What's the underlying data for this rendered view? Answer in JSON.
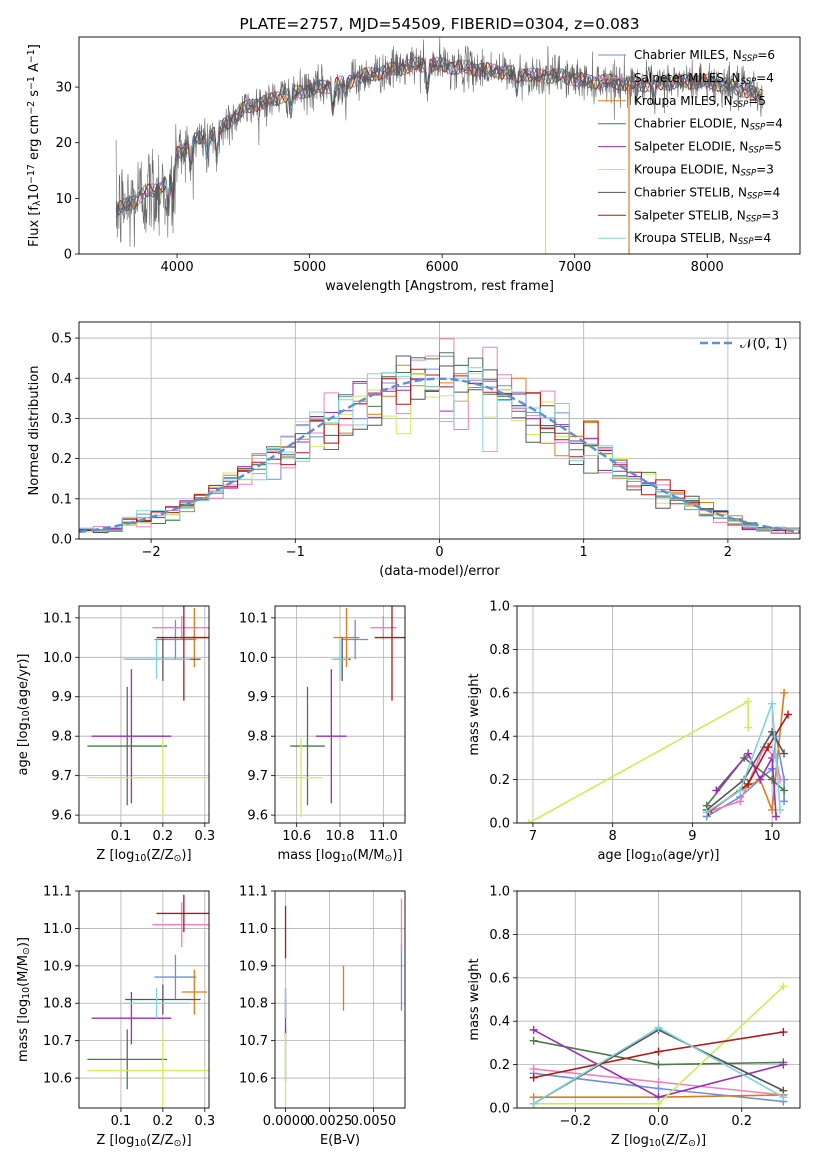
{
  "colors": {
    "Chabrier MILES": "#6e8fd6",
    "Salpeter MILES": "#f07fbf",
    "Kroupa MILES": "#e07a1f",
    "Chabrier ELODIE": "#4a7a4a",
    "Salpeter ELODIE": "#9a2fb8",
    "Kroupa ELODIE": "#d2ea5a",
    "Chabrier STELIB": "#555555",
    "Salpeter STELIB": "#b01818",
    "Kroupa STELIB": "#7fd4dc"
  },
  "chart_data": [
    {
      "id": "spectrum",
      "type": "line",
      "title": "PLATE=2757, MJD=54509, FIBERID=0304, z=0.083",
      "xlabel": "wavelength [Angstrom, rest frame]",
      "ylabel": "Flux [f$_\\lambda$10$^{-17}$ erg cm$^{-2}$ s$^{-1}$ A$^{-1}$]",
      "xlim": [
        3260,
        8700
      ],
      "ylim": [
        0,
        39
      ],
      "xticks": [
        "4000",
        "5000",
        "6000",
        "7000",
        "8000"
      ],
      "yticks": [
        "0",
        "10",
        "20",
        "30"
      ],
      "legend_position": "upper-right",
      "legend": [
        {
          "series": "Chabrier MILES",
          "label": "Chabrier MILES, N",
          "sub": "SSP",
          "tail": "=6"
        },
        {
          "series": "Salpeter MILES",
          "label": "Salpeter MILES, N",
          "sub": "SSP",
          "tail": "=4"
        },
        {
          "series": "Kroupa MILES",
          "label": "Kroupa MILES, N",
          "sub": "SSP",
          "tail": "=5"
        },
        {
          "series": "Chabrier ELODIE",
          "label": "Chabrier ELODIE, N",
          "sub": "SSP",
          "tail": "=4"
        },
        {
          "series": "Salpeter ELODIE",
          "label": "Salpeter ELODIE, N",
          "sub": "SSP",
          "tail": "=5"
        },
        {
          "series": "Kroupa ELODIE",
          "label": "Kroupa ELODIE, N",
          "sub": "SSP",
          "tail": "=3"
        },
        {
          "series": "Chabrier STELIB",
          "label": "Chabrier STELIB, N",
          "sub": "SSP",
          "tail": "=4"
        },
        {
          "series": "Salpeter STELIB",
          "label": "Salpeter STELIB, N",
          "sub": "SSP",
          "tail": "=3"
        },
        {
          "series": "Kroupa STELIB",
          "label": "Kroupa STELIB, N",
          "sub": "SSP",
          "tail": "=4"
        }
      ],
      "continuum": [
        [
          3540,
          8
        ],
        [
          3650,
          9
        ],
        [
          3750,
          11
        ],
        [
          3850,
          11.5
        ],
        [
          3950,
          14
        ],
        [
          4000,
          18
        ],
        [
          4100,
          20
        ],
        [
          4200,
          21
        ],
        [
          4300,
          22
        ],
        [
          4400,
          24
        ],
        [
          4500,
          26
        ],
        [
          4600,
          27
        ],
        [
          4700,
          27.5
        ],
        [
          4800,
          28.5
        ],
        [
          4900,
          29
        ],
        [
          5000,
          29.5
        ],
        [
          5100,
          30
        ],
        [
          5200,
          30.5
        ],
        [
          5300,
          31
        ],
        [
          5400,
          32
        ],
        [
          5500,
          32.5
        ],
        [
          5600,
          33
        ],
        [
          5700,
          33.5
        ],
        [
          5800,
          34
        ],
        [
          5900,
          34
        ],
        [
          6000,
          34
        ],
        [
          6100,
          33.5
        ],
        [
          6200,
          33.5
        ],
        [
          6300,
          33
        ],
        [
          6400,
          33
        ],
        [
          6500,
          32.5
        ],
        [
          6600,
          32.5
        ],
        [
          6700,
          32
        ],
        [
          6800,
          32
        ],
        [
          6900,
          32
        ],
        [
          7000,
          31.5
        ],
        [
          7100,
          31
        ],
        [
          7200,
          31
        ],
        [
          7300,
          31
        ],
        [
          7400,
          30.5
        ],
        [
          7600,
          30.5
        ],
        [
          7800,
          31
        ],
        [
          8000,
          31
        ],
        [
          8200,
          30
        ],
        [
          8400,
          28.5
        ]
      ],
      "absorption_lines": [
        [
          3934,
          6
        ],
        [
          3969,
          5
        ],
        [
          4102,
          4
        ],
        [
          4227,
          3
        ],
        [
          4300,
          5
        ],
        [
          4861,
          3
        ],
        [
          5175,
          4
        ],
        [
          5270,
          2
        ],
        [
          5890,
          4
        ],
        [
          6563,
          3
        ],
        [
          7600,
          3
        ]
      ],
      "spikes": [
        [
          6780,
          "Kroupa ELODIE"
        ],
        [
          7410,
          "Kroupa MILES"
        ]
      ]
    },
    {
      "id": "residuals",
      "type": "histogram",
      "xlabel": "(data-model)/error",
      "ylabel": "Normed distribution",
      "xlim": [
        -2.5,
        2.5
      ],
      "ylim": [
        0,
        0.54
      ],
      "xticks": [
        "−2",
        "−1",
        "0",
        "1",
        "2"
      ],
      "yticks": [
        "0.0",
        "0.1",
        "0.2",
        "0.3",
        "0.4",
        "0.5"
      ],
      "bin_width": 0.1,
      "legend_label": "$\\mathcal{N}(0, 1)$",
      "gaussian": {
        "mean": 0,
        "sigma": 1
      }
    },
    {
      "id": "age-vs-Z",
      "type": "errorbar",
      "xlabel": "Z [log$_{10}$(Z/Z$_\\odot$)]",
      "ylabel": "age  [log$_{10}$(age/yr)]",
      "xlim": [
        0.0,
        0.31
      ],
      "ylim": [
        9.58,
        10.13
      ],
      "xticks": [
        0.1,
        0.2,
        0.3
      ],
      "xtick_labels": [
        "0.1",
        "0.2",
        "0.3"
      ],
      "yticks": [
        9.6,
        9.7,
        9.8,
        9.9,
        10.0,
        10.1
      ],
      "ytick_labels": [
        "9.6",
        "9.7",
        "9.8",
        "9.9",
        "10.0",
        "10.1"
      ],
      "points": [
        {
          "series": "Chabrier MILES",
          "x": 0.23,
          "xerr": 0.05,
          "y": 10.045,
          "yerr": 0.05
        },
        {
          "series": "Salpeter MILES",
          "x": 0.245,
          "xerr": 0.07,
          "y": 10.075,
          "yerr": 0.03
        },
        {
          "series": "Kroupa MILES",
          "x": 0.275,
          "xerr": 0.03,
          "y": 10.05,
          "yerr": 0.075
        },
        {
          "series": "Chabrier ELODIE",
          "x": 0.115,
          "xerr": 0.095,
          "y": 9.775,
          "yerr": 0.15
        },
        {
          "series": "Salpeter ELODIE",
          "x": 0.125,
          "xerr": 0.095,
          "y": 9.8,
          "yerr": 0.17
        },
        {
          "series": "Kroupa ELODIE",
          "x": 0.2,
          "xerr": 0.18,
          "y": 9.695,
          "yerr": 0.1
        },
        {
          "series": "Chabrier STELIB",
          "x": 0.2,
          "xerr": 0.09,
          "y": 9.995,
          "yerr": 0.055
        },
        {
          "series": "Salpeter STELIB",
          "x": 0.25,
          "xerr": 0.065,
          "y": 10.05,
          "yerr": 0.16
        },
        {
          "series": "Kroupa STELIB",
          "x": 0.185,
          "xerr": 0.08,
          "y": 9.995,
          "yerr": 0.05
        }
      ]
    },
    {
      "id": "age-vs-mass",
      "type": "errorbar",
      "xlabel": "mass [log$_{10}$(M/M$_\\odot$)]",
      "ylabel": "",
      "xlim": [
        10.5,
        11.1
      ],
      "ylim": [
        9.58,
        10.13
      ],
      "xticks": [
        10.6,
        10.8,
        11.0
      ],
      "xtick_labels": [
        "10.6",
        "10.8",
        "11.0"
      ],
      "yticks": [
        9.6,
        9.7,
        9.8,
        9.9,
        10.0,
        10.1
      ],
      "ytick_labels": [
        "9.6",
        "9.7",
        "9.8",
        "9.9",
        "10.0",
        "10.1"
      ],
      "points": [
        {
          "series": "Chabrier MILES",
          "x": 10.87,
          "xerr": 0.06,
          "y": 10.045,
          "yerr": 0.05
        },
        {
          "series": "Salpeter MILES",
          "x": 11.0,
          "xerr": 0.06,
          "y": 10.075,
          "yerr": 0.03
        },
        {
          "series": "Kroupa MILES",
          "x": 10.83,
          "xerr": 0.06,
          "y": 10.05,
          "yerr": 0.075
        },
        {
          "series": "Chabrier ELODIE",
          "x": 10.65,
          "xerr": 0.08,
          "y": 9.775,
          "yerr": 0.15
        },
        {
          "series": "Salpeter ELODIE",
          "x": 10.76,
          "xerr": 0.07,
          "y": 9.8,
          "yerr": 0.17
        },
        {
          "series": "Kroupa ELODIE",
          "x": 10.62,
          "xerr": 0.1,
          "y": 9.695,
          "yerr": 0.1
        },
        {
          "series": "Chabrier STELIB",
          "x": 10.81,
          "xerr": 0.04,
          "y": 9.995,
          "yerr": 0.055
        },
        {
          "series": "Salpeter STELIB",
          "x": 11.04,
          "xerr": 0.08,
          "y": 10.05,
          "yerr": 0.16
        },
        {
          "series": "Kroupa STELIB",
          "x": 10.8,
          "xerr": 0.04,
          "y": 9.995,
          "yerr": 0.05
        }
      ]
    },
    {
      "id": "weight-vs-age",
      "type": "line",
      "xlabel": "age  [log$_{10}$(age/yr)]",
      "ylabel": "mass weight",
      "xlim": [
        6.8,
        10.35
      ],
      "ylim": [
        0,
        1.0
      ],
      "xticks": [
        7,
        8,
        9,
        10
      ],
      "xtick_labels": [
        "7",
        "8",
        "9",
        "10"
      ],
      "yticks": [
        0.0,
        0.2,
        0.4,
        0.6,
        0.8,
        1.0
      ],
      "ytick_labels": [
        "0.0",
        "0.2",
        "0.4",
        "0.6",
        "0.8",
        "1.0"
      ],
      "series": [
        {
          "name": "Chabrier MILES",
          "x": [
            9.18,
            9.6,
            10.0,
            10.05,
            10.15,
            10.15
          ],
          "y": [
            0.03,
            0.12,
            0.25,
            0.4,
            0.2,
            0.1
          ]
        },
        {
          "name": "Salpeter MILES",
          "x": [
            9.18,
            9.6,
            9.9,
            10.05,
            10.1
          ],
          "y": [
            0.05,
            0.1,
            0.35,
            0.3,
            0.2
          ]
        },
        {
          "name": "Kroupa MILES",
          "x": [
            9.2,
            9.6,
            9.85,
            10.0,
            10.15
          ],
          "y": [
            0.05,
            0.15,
            0.2,
            0.06,
            0.6
          ]
        },
        {
          "name": "Chabrier ELODIE",
          "x": [
            9.18,
            9.65,
            10.0,
            10.15
          ],
          "y": [
            0.08,
            0.3,
            0.2,
            0.15
          ]
        },
        {
          "name": "Salpeter ELODIE",
          "x": [
            9.3,
            9.7,
            9.85,
            10.0,
            10.05
          ],
          "y": [
            0.15,
            0.32,
            0.2,
            0.3,
            0.03
          ]
        },
        {
          "name": "Kroupa ELODIE",
          "x": [
            6.95,
            9.7,
            9.7
          ],
          "y": [
            0.0,
            0.56,
            0.44
          ]
        },
        {
          "name": "Chabrier STELIB",
          "x": [
            9.18,
            9.65,
            10.0,
            10.15
          ],
          "y": [
            0.06,
            0.2,
            0.42,
            0.32
          ]
        },
        {
          "name": "Salpeter STELIB",
          "x": [
            9.2,
            9.7,
            9.95,
            10.2
          ],
          "y": [
            0.05,
            0.18,
            0.35,
            0.5
          ]
        },
        {
          "name": "Kroupa STELIB",
          "x": [
            9.18,
            9.6,
            10.0,
            10.05,
            10.1
          ],
          "y": [
            0.05,
            0.15,
            0.55,
            0.3,
            0.06
          ]
        }
      ]
    },
    {
      "id": "mass-vs-Z",
      "type": "errorbar",
      "xlabel": "Z [log$_{10}$(Z/Z$_\\odot$)]",
      "ylabel": "mass [log$_{10}$(M/M$_\\odot$)]",
      "xlim": [
        0.0,
        0.31
      ],
      "ylim": [
        10.52,
        11.1
      ],
      "xticks": [
        0.1,
        0.2,
        0.3
      ],
      "xtick_labels": [
        "0.1",
        "0.2",
        "0.3"
      ],
      "yticks": [
        10.6,
        10.7,
        10.8,
        10.9,
        11.0,
        11.1
      ],
      "ytick_labels": [
        "10.6",
        "10.7",
        "10.8",
        "10.9",
        "11.0",
        "11.1"
      ],
      "points": [
        {
          "series": "Chabrier MILES",
          "x": 0.23,
          "xerr": 0.05,
          "y": 10.87,
          "yerr": 0.06
        },
        {
          "series": "Salpeter MILES",
          "x": 0.245,
          "xerr": 0.07,
          "y": 11.01,
          "yerr": 0.06
        },
        {
          "series": "Kroupa MILES",
          "x": 0.275,
          "xerr": 0.03,
          "y": 10.83,
          "yerr": 0.06
        },
        {
          "series": "Chabrier ELODIE",
          "x": 0.115,
          "xerr": 0.095,
          "y": 10.65,
          "yerr": 0.08
        },
        {
          "series": "Salpeter ELODIE",
          "x": 0.125,
          "xerr": 0.095,
          "y": 10.76,
          "yerr": 0.07
        },
        {
          "series": "Kroupa ELODIE",
          "x": 0.2,
          "xerr": 0.18,
          "y": 10.62,
          "yerr": 0.1
        },
        {
          "series": "Chabrier STELIB",
          "x": 0.2,
          "xerr": 0.09,
          "y": 10.81,
          "yerr": 0.04
        },
        {
          "series": "Salpeter STELIB",
          "x": 0.25,
          "xerr": 0.065,
          "y": 11.04,
          "yerr": 0.05
        },
        {
          "series": "Kroupa STELIB",
          "x": 0.185,
          "xerr": 0.08,
          "y": 10.8,
          "yerr": 0.04
        }
      ]
    },
    {
      "id": "mass-vs-EBV",
      "type": "errorbar",
      "xlabel": "E(B-V)",
      "ylabel": "",
      "xlim": [
        -0.0006,
        0.0068
      ],
      "ylim": [
        10.52,
        11.1
      ],
      "xticks": [
        0.0,
        0.0025,
        0.005
      ],
      "xtick_labels": [
        "0.0000",
        "0.0025",
        "0.0050"
      ],
      "yticks": [
        10.6,
        10.7,
        10.8,
        10.9,
        11.0,
        11.1
      ],
      "ytick_labels": [
        "10.6",
        "10.7",
        "10.8",
        "10.9",
        "11.0",
        "11.1"
      ],
      "points": [
        {
          "series": "Chabrier MILES",
          "x": 0.0066,
          "xerr": 0,
          "y": 10.87,
          "yerr": 0.09
        },
        {
          "series": "Salpeter MILES",
          "x": 0.0066,
          "xerr": 0,
          "y": 11.01,
          "yerr": 0.07
        },
        {
          "series": "Kroupa MILES",
          "x": 0.0033,
          "xerr": 0,
          "y": 10.84,
          "yerr": 0.06
        },
        {
          "series": "Chabrier ELODIE",
          "x": 0.0,
          "xerr": 0,
          "y": 10.66,
          "yerr": 0.07
        },
        {
          "series": "Salpeter ELODIE",
          "x": 0.0,
          "xerr": 0,
          "y": 10.76,
          "yerr": 0.05
        },
        {
          "series": "Kroupa ELODIE",
          "x": 0.0,
          "xerr": 0,
          "y": 10.62,
          "yerr": 0.1
        },
        {
          "series": "Chabrier STELIB",
          "x": 0.0,
          "xerr": 0,
          "y": 10.8,
          "yerr": 0.04
        },
        {
          "series": "Salpeter STELIB",
          "x": 0.0,
          "xerr": 0,
          "y": 10.99,
          "yerr": 0.07
        },
        {
          "series": "Kroupa STELIB",
          "x": 0.0,
          "xerr": 0,
          "y": 10.8,
          "yerr": 0.04
        }
      ]
    },
    {
      "id": "weight-vs-Z",
      "type": "line",
      "xlabel": "Z [log$_{10}$(Z/Z$_\\odot$)]",
      "ylabel": "mass weight",
      "xlim": [
        -0.34,
        0.34
      ],
      "ylim": [
        0,
        1.0
      ],
      "xticks": [
        -0.2,
        0.0,
        0.2
      ],
      "xtick_labels": [
        "−0.2",
        "0.0",
        "0.2"
      ],
      "yticks": [
        0.0,
        0.2,
        0.4,
        0.6,
        0.8,
        1.0
      ],
      "ytick_labels": [
        "0.0",
        "0.2",
        "0.4",
        "0.6",
        "0.8",
        "1.0"
      ],
      "series": [
        {
          "name": "Chabrier MILES",
          "x": [
            -0.3,
            0.0,
            0.3
          ],
          "y": [
            0.16,
            0.09,
            0.03
          ]
        },
        {
          "name": "Salpeter MILES",
          "x": [
            -0.3,
            0.0,
            0.3
          ],
          "y": [
            0.18,
            0.12,
            0.06
          ]
        },
        {
          "name": "Kroupa MILES",
          "x": [
            -0.3,
            0.0,
            0.3
          ],
          "y": [
            0.05,
            0.05,
            0.06
          ]
        },
        {
          "name": "Chabrier ELODIE",
          "x": [
            -0.3,
            0.0,
            0.3
          ],
          "y": [
            0.31,
            0.2,
            0.21
          ]
        },
        {
          "name": "Salpeter ELODIE",
          "x": [
            -0.3,
            0.0,
            0.3
          ],
          "y": [
            0.36,
            0.05,
            0.2
          ]
        },
        {
          "name": "Kroupa ELODIE",
          "x": [
            -0.3,
            0.0,
            0.3
          ],
          "y": [
            0.02,
            0.02,
            0.56
          ]
        },
        {
          "name": "Chabrier STELIB",
          "x": [
            -0.3,
            0.0,
            0.3
          ],
          "y": [
            0.02,
            0.36,
            0.08
          ]
        },
        {
          "name": "Salpeter STELIB",
          "x": [
            -0.3,
            0.0,
            0.3
          ],
          "y": [
            0.14,
            0.26,
            0.35
          ]
        },
        {
          "name": "Kroupa STELIB",
          "x": [
            -0.3,
            0.0,
            0.3
          ],
          "y": [
            0.02,
            0.37,
            0.05
          ]
        }
      ]
    }
  ]
}
